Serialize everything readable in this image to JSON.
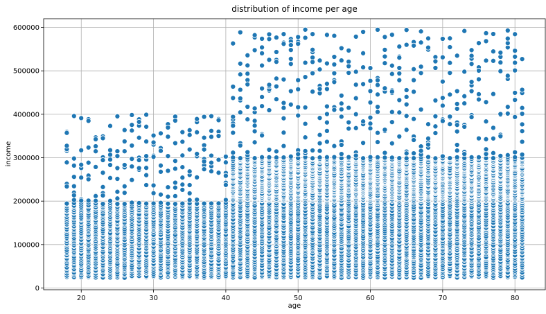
{
  "chart_data": {
    "type": "scatter",
    "title": "distribution of income per age",
    "xlabel": "age",
    "ylabel": "income",
    "xlim": [
      14.8,
      84.2
    ],
    "ylim": [
      -4000,
      620000
    ],
    "xticks": [
      20,
      30,
      40,
      50,
      60,
      70,
      80
    ],
    "yticks": [
      0,
      100000,
      200000,
      300000,
      400000,
      500000,
      600000
    ],
    "grid": true,
    "legend": "none",
    "color": "#1f77b4",
    "series": [
      {
        "age_range": [
          18,
          81
        ],
        "bands": [
          {
            "age_from": 18,
            "age_to": 81,
            "income_min": 25000,
            "income_max": 195000,
            "density": "dense"
          },
          {
            "age_from": 18,
            "age_to": 40,
            "income_min": 200000,
            "income_max": 400000,
            "density": "sparse"
          },
          {
            "age_from": 41,
            "age_to": 81,
            "income_min": 200000,
            "income_max": 300000,
            "density": "dense"
          },
          {
            "age_from": 41,
            "age_to": 81,
            "income_min": 300000,
            "income_max": 595000,
            "density": "sparse"
          }
        ]
      }
    ]
  }
}
